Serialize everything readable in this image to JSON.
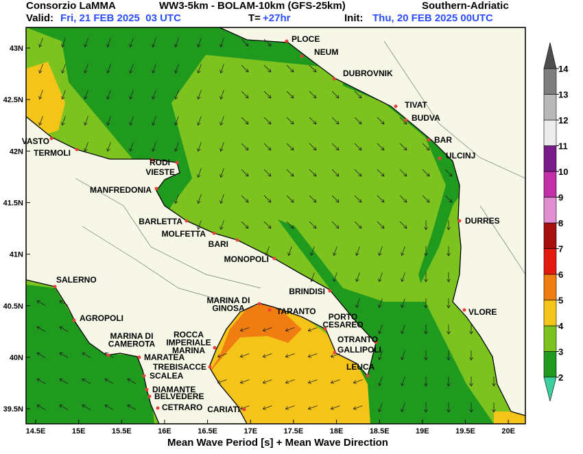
{
  "header": {
    "org": "Consorzio LaMMA",
    "model": "WW3-5km - BOLAM-10km (GFS-25km)",
    "region": "Southern-Adriatic",
    "valid_label": "Valid:",
    "valid_time": "Fri, 21 FEB 2025  03 UTC",
    "lead_label": "T=",
    "lead_time": "+27hr",
    "init_label": "Init:",
    "init_time": "Thu, 20 FEB 2025 00UTC"
  },
  "map": {
    "lon_ticks": [
      {
        "value": 14.5,
        "label": "14.5E"
      },
      {
        "value": 15,
        "label": "15E"
      },
      {
        "value": 15.5,
        "label": "15.5E"
      },
      {
        "value": 16,
        "label": "16E"
      },
      {
        "value": 16.5,
        "label": "16.5E"
      },
      {
        "value": 17,
        "label": "17E"
      },
      {
        "value": 17.5,
        "label": "17.5E"
      },
      {
        "value": 18,
        "label": "18E"
      },
      {
        "value": 18.5,
        "label": "18.5E"
      },
      {
        "value": 19,
        "label": "19E"
      },
      {
        "value": 19.5,
        "label": "19.5E"
      },
      {
        "value": 20,
        "label": "20E"
      }
    ],
    "lat_ticks": [
      {
        "value": 43,
        "label": "43N"
      },
      {
        "value": 42.5,
        "label": "42.5N"
      },
      {
        "value": 42,
        "label": "42N"
      },
      {
        "value": 41.5,
        "label": "41.5N"
      },
      {
        "value": 41,
        "label": "41N"
      },
      {
        "value": 40.5,
        "label": "40.5N"
      },
      {
        "value": 40,
        "label": "40N"
      },
      {
        "value": 39.5,
        "label": "39.5N"
      }
    ],
    "cities": [
      [
        "PLOCE"
      ],
      [
        "NEUM"
      ],
      [
        "DUBROVNIK"
      ],
      [
        "TIVAT"
      ],
      [
        "BUDVA"
      ],
      [
        "BAR"
      ],
      [
        "ULCINJ"
      ],
      [
        "DURRES"
      ],
      [
        "VLORE"
      ],
      [
        "VASTO"
      ],
      [
        "TERMOLI"
      ],
      [
        "RODI"
      ],
      [
        "VIESTE"
      ],
      [
        "MANFREDONIA"
      ],
      [
        "BARLETTA"
      ],
      [
        "MOLFETTA"
      ],
      [
        "BARI"
      ],
      [
        "MONOPOLI"
      ],
      [
        "BRINDISI"
      ],
      [
        "SALERNO"
      ],
      [
        "AGROPOLI"
      ],
      [
        "MARINA DI",
        "CAMEROTA"
      ],
      [
        "MARATEA"
      ],
      [
        "ROCCA",
        "IMPERIALE",
        "MARINA"
      ],
      [
        "TREBISACCE"
      ],
      [
        "SCALEA"
      ],
      [
        "DIAMANTE"
      ],
      [
        "BELVEDERE"
      ],
      [
        "CETRARO"
      ],
      [
        "CARIATI"
      ],
      [
        "MARINA DI",
        "GINOSA"
      ],
      [
        "TARANTO"
      ],
      [
        "PORTO",
        "CESAREO"
      ],
      [
        "OTRANTO"
      ],
      [
        "GALLIPOLI"
      ],
      [
        "LEUCA"
      ]
    ]
  },
  "colorbar": {
    "ticks": [
      2,
      3,
      4,
      5,
      6,
      7,
      8,
      9,
      10,
      11,
      12,
      13,
      14
    ],
    "colors": [
      "#1f9a1f",
      "#7cc31f",
      "#f5c419",
      "#f07d12",
      "#e31a10",
      "#a50f0f",
      "#df8fd0",
      "#c22fa8",
      "#7a1b8a",
      "#ececec",
      "#b9b9b9",
      "#7f7f7f"
    ],
    "under_color": "#3cd0a0",
    "over_color": "#4d4d4d"
  },
  "footer": "Mean Wave Period [s] + Mean Wave Direction"
}
